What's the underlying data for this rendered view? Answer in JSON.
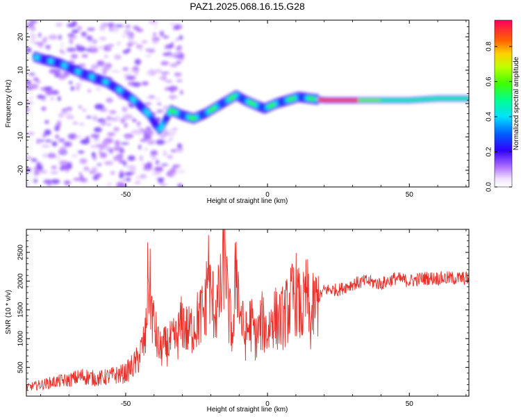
{
  "title": "PAZ1.2025.068.16.15.G28",
  "colors": {
    "snr_line": "#e8302a",
    "frame": "#000000"
  },
  "chart_data": [
    {
      "type": "heatmap",
      "title": "PAZ1.2025.068.16.15.G28",
      "xlabel": "Height of straight line (km)",
      "ylabel": "Frequency (Hz)",
      "xlim": [
        -85,
        71
      ],
      "ylim": [
        -25,
        25
      ],
      "xticks": [
        -50,
        0,
        50
      ],
      "yticks": [
        -20,
        -10,
        0,
        10,
        20
      ],
      "grid": false,
      "ridge": {
        "x": [
          -82,
          -78,
          -73,
          -68,
          -62,
          -57,
          -52,
          -47,
          -42,
          -38,
          -34,
          -30,
          -26,
          -22,
          -18,
          -14,
          -11,
          -8,
          -4,
          -1,
          3,
          7,
          11,
          15,
          20,
          30,
          40,
          50,
          60,
          71
        ],
        "y": [
          14,
          13,
          12,
          10,
          8,
          6.5,
          4,
          1,
          -3,
          -8,
          -2,
          -3.5,
          -4.5,
          -3,
          -1,
          1,
          2.5,
          1,
          -0.5,
          -1.5,
          0,
          1,
          2,
          1.5,
          1,
          1,
          1,
          1,
          1.5,
          1.5
        ]
      },
      "colorbar": {
        "label": "Normalized spectral amplitude",
        "range": [
          0,
          0.95
        ],
        "ticks": [
          0.0,
          0.2,
          0.4,
          0.6,
          0.8
        ],
        "tick_labels": [
          "0.0",
          "0.2",
          "0.4",
          "0.6",
          "0.8"
        ],
        "colormap": "hsv"
      }
    },
    {
      "type": "line",
      "xlabel": "Height of straight line (km)",
      "ylabel": "SNR (10 * v/v)",
      "xlim": [
        -85,
        71
      ],
      "ylim": [
        0,
        2900
      ],
      "xticks": [
        -50,
        0,
        50
      ],
      "yticks": [
        500,
        1000,
        1500,
        2000,
        2500
      ],
      "grid": false,
      "series": [
        {
          "color": "#e8302a",
          "x": [
            -85,
            -80,
            -75,
            -70,
            -65,
            -60,
            -55,
            -50,
            -46,
            -43,
            -42,
            -41,
            -40,
            -38,
            -35,
            -32,
            -30,
            -28,
            -25,
            -22,
            -21,
            -20,
            -18,
            -16,
            -15,
            -14,
            -13,
            -12,
            -11,
            -10,
            -8,
            -6,
            -4,
            -2,
            0,
            2,
            4,
            6,
            8,
            10,
            12,
            14,
            15,
            16,
            18,
            20,
            25,
            30,
            35,
            40,
            45,
            50,
            55,
            60,
            65,
            71
          ],
          "y": [
            150,
            200,
            250,
            280,
            350,
            300,
            350,
            400,
            600,
            1000,
            2200,
            1600,
            1200,
            800,
            900,
            1000,
            1300,
            1100,
            1300,
            1500,
            2300,
            1700,
            1500,
            1900,
            2850,
            1500,
            1300,
            1000,
            2500,
            1600,
            1000,
            1300,
            1000,
            1300,
            1100,
            1400,
            1300,
            1400,
            1600,
            1800,
            1400,
            1800,
            1200,
            1500,
            1700,
            1850,
            1850,
            1950,
            2000,
            1950,
            2050,
            2000,
            2050,
            2050,
            2050,
            2050
          ]
        }
      ]
    }
  ]
}
